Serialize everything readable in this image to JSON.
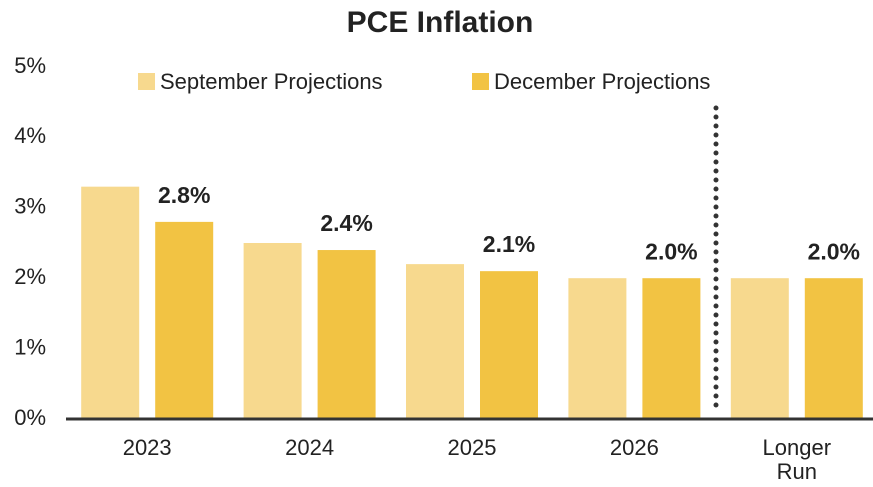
{
  "chart_data": {
    "type": "bar",
    "title": "PCE Inflation",
    "categories": [
      "2023",
      "2024",
      "2025",
      "2026",
      "Longer Run"
    ],
    "series": [
      {
        "name": "September Projections",
        "color": "#f7d98e",
        "values": [
          3.3,
          2.5,
          2.2,
          2.0,
          2.0
        ]
      },
      {
        "name": "December Projections",
        "color": "#f2c343",
        "values": [
          2.8,
          2.4,
          2.1,
          2.0,
          2.0
        ],
        "value_labels": [
          "2.8%",
          "2.4%",
          "2.1%",
          "2.0%",
          "2.0%"
        ]
      }
    ],
    "ylim": [
      0,
      5
    ],
    "yticks": [
      {
        "value": 0,
        "label": "0%"
      },
      {
        "value": 1,
        "label": "1%"
      },
      {
        "value": 2,
        "label": "2%"
      },
      {
        "value": 3,
        "label": "3%"
      },
      {
        "value": 4,
        "label": "4%"
      },
      {
        "value": 5,
        "label": "5%"
      }
    ],
    "grid": false
  }
}
